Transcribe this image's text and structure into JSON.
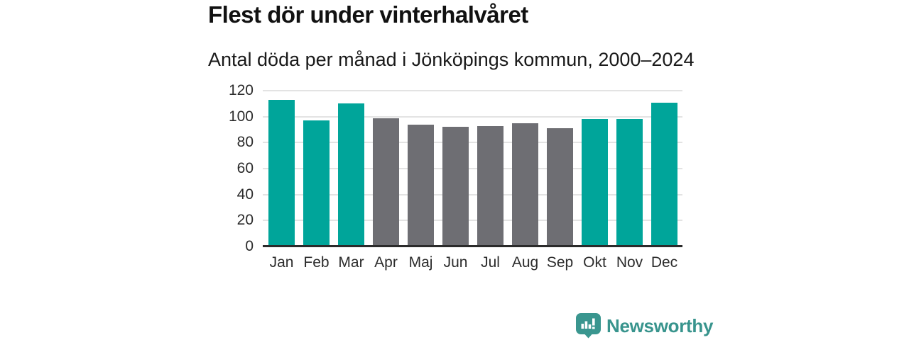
{
  "header": {
    "title": "Flest dör under vinterhalvåret",
    "subtitle": "Antal döda per månad i Jönköpings kommun, 2000–2024"
  },
  "chart_data": {
    "type": "bar",
    "title": "Flest dör under vinterhalvåret",
    "subtitle": "Antal döda per månad i Jönköpings kommun, 2000–2024",
    "categories": [
      "Jan",
      "Feb",
      "Mar",
      "Apr",
      "Maj",
      "Jun",
      "Jul",
      "Aug",
      "Sep",
      "Okt",
      "Nov",
      "Dec"
    ],
    "values": [
      113,
      97,
      110,
      99,
      94,
      92,
      93,
      95,
      91,
      98,
      98,
      111
    ],
    "bar_colors": [
      "#00a59a",
      "#00a59a",
      "#00a59a",
      "#6e6e73",
      "#6e6e73",
      "#6e6e73",
      "#6e6e73",
      "#6e6e73",
      "#6e6e73",
      "#00a59a",
      "#00a59a",
      "#00a59a"
    ],
    "colors": {
      "winter_months": "#00a59a",
      "summer_months": "#6e6e73",
      "gridline": "#e3e3e3",
      "axis_line": "#2b2b2b",
      "tick_label": "#2b2b2b"
    },
    "xlabel": "",
    "ylabel": "",
    "ylim": [
      0,
      120
    ],
    "yticks": [
      0,
      20,
      40,
      60,
      80,
      100,
      120
    ],
    "grid": "horizontal",
    "legend": "none"
  },
  "branding": {
    "name": "Newsworthy",
    "logo_icon": "newsworthy-chart-bubble-icon",
    "color": "#38948d"
  }
}
